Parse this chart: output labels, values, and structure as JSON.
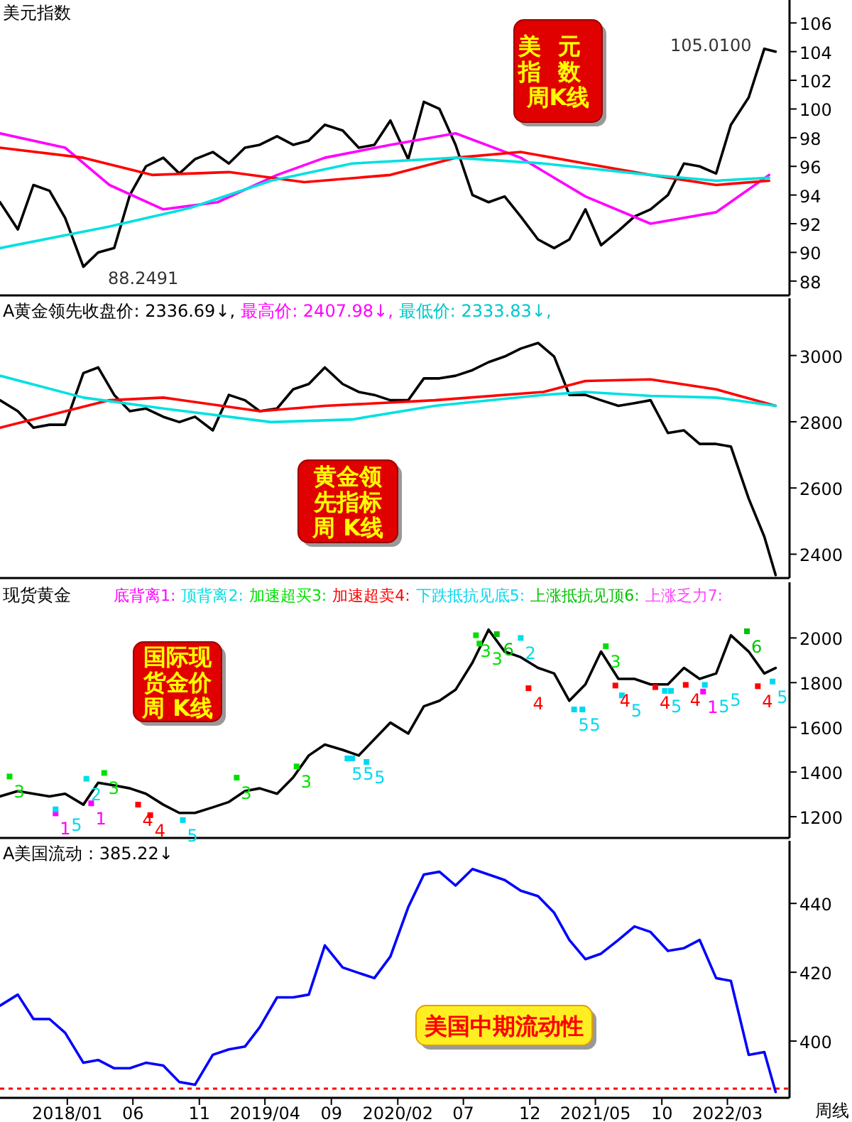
{
  "chart_data": [
    {
      "type": "line",
      "title": "美元指数",
      "xlim": [
        "2017-07-30",
        "2022-07-22"
      ],
      "ylim": [
        87.0,
        107.6
      ],
      "yticks": [
        88,
        90,
        92,
        94,
        96,
        98,
        100,
        102,
        104,
        106
      ],
      "tick_labels": "y",
      "x": [
        "2017-07-30",
        "2017-09-09",
        "2017-10-15",
        "2017-11-21",
        "2017-12-27",
        "2018-02-07",
        "2018-03-13",
        "2018-04-19",
        "2018-05-25",
        "2018-07-01",
        "2018-08-10",
        "2018-09-16",
        "2018-10-22",
        "2018-12-02",
        "2019-01-08",
        "2019-02-14",
        "2019-03-20",
        "2019-04-29",
        "2019-06-05",
        "2019-07-11",
        "2019-08-17",
        "2019-09-27",
        "2019-11-03",
        "2019-12-09",
        "2020-01-15",
        "2020-02-25",
        "2020-04-01",
        "2020-05-07",
        "2020-06-13",
        "2020-07-22",
        "2020-08-28",
        "2020-10-04",
        "2020-11-10",
        "2020-12-20",
        "2021-01-26",
        "2021-03-02",
        "2021-04-08",
        "2021-05-14",
        "2021-06-23",
        "2021-07-30",
        "2021-09-05",
        "2021-10-15",
        "2021-11-21",
        "2021-12-27",
        "2022-02-03",
        "2022-03-09",
        "2022-04-19",
        "2022-05-25",
        "2022-06-20"
      ],
      "series": [
        {
          "color": "#000000",
          "values": [
            93.5,
            91.6,
            94.7,
            94.3,
            92.4,
            89.0,
            90.0,
            90.3,
            94.0,
            96.0,
            96.6,
            95.5,
            96.5,
            97.0,
            96.2,
            97.3,
            97.5,
            98.1,
            97.5,
            97.8,
            98.9,
            98.5,
            97.3,
            97.5,
            99.2,
            96.5,
            100.5,
            100.0,
            97.5,
            94.0,
            93.5,
            93.9,
            92.5,
            90.9,
            90.3,
            90.9,
            93.0,
            90.5,
            91.5,
            92.5,
            93.0,
            94.0,
            96.2,
            96.0,
            95.5,
            98.9,
            100.8,
            104.2,
            104.0
          ]
        },
        {
          "color": "#ff00ff",
          "x": [
            "2017-07-30",
            "2017-12-27",
            "2018-04-08",
            "2018-08-10",
            "2018-12-13",
            "2019-04-29",
            "2019-08-17",
            "2020-01-15",
            "2020-06-13",
            "2020-11-10",
            "2021-04-08",
            "2021-09-05",
            "2022-02-03",
            "2022-06-05"
          ],
          "values": [
            98.3,
            97.3,
            94.7,
            93.0,
            93.5,
            95.4,
            96.6,
            97.5,
            98.3,
            96.6,
            93.9,
            92.0,
            92.8,
            95.4
          ]
        },
        {
          "color": "#ff0000",
          "x": [
            "2017-07-30",
            "2018-02-07",
            "2018-07-15",
            "2019-01-08",
            "2019-07-01",
            "2020-01-15",
            "2020-06-13",
            "2020-11-10",
            "2021-04-08",
            "2021-09-05",
            "2022-02-03",
            "2022-06-05"
          ],
          "values": [
            97.3,
            96.6,
            95.4,
            95.6,
            94.9,
            95.4,
            96.6,
            97.0,
            96.2,
            95.4,
            94.7,
            95.0
          ]
        },
        {
          "color": "#00e0e0",
          "x": [
            "2017-07-30",
            "2018-04-08",
            "2018-10-11",
            "2019-04-15",
            "2019-10-19",
            "2020-06-13",
            "2021-01-01",
            "2021-09-05",
            "2022-02-03",
            "2022-06-05"
          ],
          "values": [
            90.3,
            91.8,
            93.1,
            95.0,
            96.2,
            96.6,
            96.2,
            95.4,
            95.0,
            95.2
          ]
        }
      ],
      "annotations": [
        "美元指数周K线",
        "105.0100",
        "88.2491"
      ]
    },
    {
      "type": "line",
      "xlim": [
        "2017-07-30",
        "2022-07-22"
      ],
      "ylim": [
        2328,
        3173
      ],
      "yticks": [
        2400,
        2600,
        2800,
        3000
      ],
      "tick_labels": "y",
      "x": [
        "2017-07-30",
        "2017-09-09",
        "2017-10-15",
        "2017-11-21",
        "2017-12-27",
        "2018-02-07",
        "2018-03-13",
        "2018-04-19",
        "2018-05-25",
        "2018-07-01",
        "2018-08-10",
        "2018-09-16",
        "2018-10-22",
        "2018-12-02",
        "2019-01-08",
        "2019-02-14",
        "2019-03-20",
        "2019-04-29",
        "2019-06-05",
        "2019-07-11",
        "2019-08-17",
        "2019-09-27",
        "2019-11-03",
        "2019-12-09",
        "2020-01-15",
        "2020-02-25",
        "2020-04-01",
        "2020-05-07",
        "2020-06-13",
        "2020-07-22",
        "2020-08-28",
        "2020-10-04",
        "2020-11-10",
        "2020-12-20",
        "2021-01-26",
        "2021-03-02",
        "2021-04-08",
        "2021-05-14",
        "2021-06-23",
        "2021-07-30",
        "2021-09-05",
        "2021-10-15",
        "2021-11-21",
        "2021-12-27",
        "2022-02-03",
        "2022-03-09",
        "2022-04-19",
        "2022-05-25",
        "2022-06-20"
      ],
      "series": [
        {
          "color": "#000000",
          "values": [
            2865,
            2832,
            2782,
            2791,
            2791,
            2947,
            2964,
            2881,
            2832,
            2840,
            2815,
            2799,
            2815,
            2774,
            2881,
            2865,
            2832,
            2840,
            2898,
            2914,
            2964,
            2914,
            2890,
            2881,
            2865,
            2865,
            2931,
            2931,
            2939,
            2956,
            2980,
            2997,
            3021,
            3038,
            2997,
            2881,
            2881,
            2865,
            2848,
            2856,
            2865,
            2766,
            2774,
            2733,
            2733,
            2725,
            2568,
            2453,
            2337
          ]
        },
        {
          "color": "#ff0000",
          "x": [
            "2017-07-30",
            "2018-04-08",
            "2018-08-10",
            "2019-03-20",
            "2019-08-17",
            "2020-04-26",
            "2021-01-01",
            "2021-04-08",
            "2021-09-05",
            "2022-02-03",
            "2022-06-20"
          ],
          "values": [
            2782,
            2865,
            2873,
            2832,
            2848,
            2865,
            2890,
            2923,
            2928,
            2898,
            2848
          ]
        },
        {
          "color": "#00e0e0",
          "x": [
            "2017-07-30",
            "2018-02-07",
            "2018-08-10",
            "2019-04-15",
            "2019-10-19",
            "2020-04-26",
            "2021-01-01",
            "2021-04-08",
            "2021-09-05",
            "2022-02-03",
            "2022-06-20"
          ],
          "values": [
            2939,
            2873,
            2840,
            2799,
            2807,
            2848,
            2881,
            2890,
            2878,
            2873,
            2848
          ]
        }
      ],
      "annotations": [
        "A黄金领先收盘价: 2336.69↓,",
        "最高价: 2407.98↓,",
        "最低价: 2333.83↓,",
        "黄金领先指标周 K线"
      ]
    },
    {
      "type": "line",
      "title": "现货黄金",
      "legend": "top left",
      "xlim": [
        "2017-07-30",
        "2022-07-22"
      ],
      "ylim": [
        1105,
        2249
      ],
      "yticks": [
        1200,
        1400,
        1600,
        1800,
        2000
      ],
      "tick_labels": "y",
      "x": [
        "2017-07-30",
        "2017-09-09",
        "2017-10-15",
        "2017-11-21",
        "2017-12-27",
        "2018-02-07",
        "2018-03-13",
        "2018-04-19",
        "2018-05-25",
        "2018-07-01",
        "2018-08-10",
        "2018-09-16",
        "2018-10-22",
        "2018-12-02",
        "2019-01-08",
        "2019-02-14",
        "2019-03-20",
        "2019-04-29",
        "2019-06-05",
        "2019-07-11",
        "2019-08-17",
        "2019-09-27",
        "2019-11-03",
        "2019-12-09",
        "2020-01-15",
        "2020-02-25",
        "2020-04-01",
        "2020-05-07",
        "2020-06-13",
        "2020-07-22",
        "2020-08-28",
        "2020-10-04",
        "2020-11-10",
        "2020-12-20",
        "2021-01-26",
        "2021-03-02",
        "2021-04-08",
        "2021-05-14",
        "2021-06-23",
        "2021-07-30",
        "2021-09-05",
        "2021-10-15",
        "2021-11-21",
        "2021-12-27",
        "2022-02-03",
        "2022-03-09",
        "2022-04-19",
        "2022-05-25",
        "2022-06-20"
      ],
      "series": [
        {
          "color": "#000000",
          "values": [
            1291,
            1315,
            1303,
            1291,
            1303,
            1254,
            1352,
            1340,
            1327,
            1303,
            1254,
            1217,
            1217,
            1242,
            1266,
            1315,
            1327,
            1303,
            1376,
            1474,
            1523,
            1499,
            1474,
            1547,
            1621,
            1572,
            1694,
            1719,
            1768,
            1890,
            2037,
            1939,
            1914,
            1866,
            1841,
            1719,
            1792,
            1939,
            1817,
            1817,
            1792,
            1792,
            1866,
            1817,
            1841,
            2012,
            1939,
            1841,
            1866
          ]
        },
        {
          "type": "scatter",
          "name": "底背离1:",
          "color": "#ff00ff",
          "x": [
            "2017-12-05",
            "2018-02-25",
            "2022-01-04"
          ],
          "values": [
            1215,
            1260,
            1760
          ]
        },
        {
          "type": "scatter",
          "name": "顶背离2:",
          "color": "#00e0e0",
          "x": [
            "2018-02-14",
            "2020-11-10"
          ],
          "values": [
            1370,
            2000
          ]
        },
        {
          "type": "scatter",
          "name": "加速超买3:",
          "color": "#00e000",
          "x": [
            "2017-08-21",
            "2018-03-27",
            "2019-01-26",
            "2019-06-13",
            "2020-07-30",
            "2020-08-07",
            "2021-05-25"
          ],
          "values": [
            1380,
            1396,
            1375,
            1425,
            2012,
            1975,
            1963
          ]
        },
        {
          "type": "scatter",
          "name": "加速超卖4:",
          "color": "#ff0000",
          "x": [
            "2018-06-13",
            "2018-07-11",
            "2020-11-28",
            "2021-06-16",
            "2021-09-16",
            "2021-11-25",
            "2022-05-10"
          ],
          "values": [
            1254,
            1207,
            1775,
            1787,
            1780,
            1790,
            1784
          ]
        },
        {
          "type": "scatter",
          "name": "下跌抵抗见底5:",
          "color": "#00d8f0",
          "x": [
            "2017-12-05",
            "2018-09-24",
            "2019-10-08",
            "2019-10-19",
            "2019-11-21",
            "2021-03-13",
            "2021-04-01",
            "2021-07-01",
            "2021-10-08",
            "2021-10-22",
            "2022-01-08",
            "2022-06-13"
          ],
          "values": [
            1233,
            1185,
            1461,
            1461,
            1445,
            1680,
            1680,
            1743,
            1763,
            1763,
            1790,
            1805
          ]
        },
        {
          "type": "scatter",
          "name": "上涨抵抗见顶6:",
          "color": "#00c000",
          "x": [
            "2020-09-16",
            "2022-04-15"
          ],
          "values": [
            2017,
            2030
          ]
        },
        {
          "type": "scatter",
          "name": "上涨乏力7:",
          "color": "#ff40ff",
          "values": [
            null,
            null,
            null,
            null,
            null,
            null,
            null,
            null,
            null,
            null,
            null,
            null,
            null,
            null,
            null,
            null,
            null,
            null,
            null,
            null,
            null,
            null,
            null,
            null,
            null,
            null,
            null,
            null,
            null,
            null,
            null,
            null,
            null,
            null,
            null,
            null,
            null,
            null,
            null,
            null,
            null,
            null,
            null,
            null,
            null,
            null,
            null,
            null,
            null
          ]
        }
      ],
      "annotations": [
        "国际现货金价周 K线",
        {
          "text": "1",
          "x": "2017-12-05",
          "y": 1215
        },
        {
          "text": "1",
          "x": "2018-02-25",
          "y": 1260
        },
        {
          "text": "1",
          "x": "2022-01-04",
          "y": 1760
        },
        {
          "text": "2",
          "x": "2018-02-14",
          "y": 1370
        },
        {
          "text": "2",
          "x": "2020-11-10",
          "y": 2000
        },
        {
          "text": "3",
          "x": "2017-08-21",
          "y": 1380
        },
        {
          "text": "3",
          "x": "2018-03-27",
          "y": 1396
        },
        {
          "text": "3",
          "x": "2019-01-26",
          "y": 1375
        },
        {
          "text": "3",
          "x": "2019-06-13",
          "y": 1425
        },
        {
          "text": "3",
          "x": "2020-07-30",
          "y": 2012
        },
        {
          "text": "3",
          "x": "2020-08-07",
          "y": 1975
        },
        {
          "text": "3",
          "x": "2021-05-25",
          "y": 1963
        },
        {
          "text": "4",
          "x": "2018-06-13",
          "y": 1254
        },
        {
          "text": "4",
          "x": "2018-07-11",
          "y": 1207
        },
        {
          "text": "4",
          "x": "2020-11-28",
          "y": 1775
        },
        {
          "text": "4",
          "x": "2021-06-16",
          "y": 1787
        },
        {
          "text": "4",
          "x": "2021-09-16",
          "y": 1780
        },
        {
          "text": "4",
          "x": "2021-11-25",
          "y": 1790
        },
        {
          "text": "4",
          "x": "2022-05-10",
          "y": 1784
        },
        {
          "text": "5",
          "x": "2017-12-05",
          "y": 1233
        },
        {
          "text": "5",
          "x": "2018-09-24",
          "y": 1185
        },
        {
          "text": "5",
          "x": "2019-10-08",
          "y": 1461
        },
        {
          "text": "5",
          "x": "2019-10-19",
          "y": 1461
        },
        {
          "text": "5",
          "x": "2019-11-21",
          "y": 1445
        },
        {
          "text": "5",
          "x": "2021-03-13",
          "y": 1680
        },
        {
          "text": "5",
          "x": "2021-04-01",
          "y": 1680
        },
        {
          "text": "5",
          "x": "2021-07-01",
          "y": 1743
        },
        {
          "text": "5",
          "x": "2021-10-08",
          "y": 1763
        },
        {
          "text": "5",
          "x": "2021-10-22",
          "y": 1763
        },
        {
          "text": "5",
          "x": "2022-01-08",
          "y": 1790
        },
        {
          "text": "5",
          "x": "2022-06-13",
          "y": 1805
        },
        {
          "text": "6",
          "x": "2020-09-16",
          "y": 2017
        },
        {
          "text": "6",
          "x": "2022-04-15",
          "y": 2030
        }
      ]
    },
    {
      "type": "line",
      "title": "A美国流动 : 385.22↓",
      "xlim": [
        "2017-07-30",
        "2022-07-22"
      ],
      "ylim": [
        383.5,
        458.2
      ],
      "yticks": [
        400,
        420,
        440
      ],
      "xticks": [
        {
          "value": "2018-01-01",
          "label": "2018/01"
        },
        {
          "value": "2018-06-01",
          "label": "06"
        },
        {
          "value": "2018-11-01",
          "label": "11"
        },
        {
          "value": "2019-04-01",
          "label": "2019/04"
        },
        {
          "value": "2019-09-01",
          "label": "09"
        },
        {
          "value": "2020-02-01",
          "label": "2020/02"
        },
        {
          "value": "2020-07-01",
          "label": "07"
        },
        {
          "value": "2020-12-01",
          "label": "12"
        },
        {
          "value": "2021-05-01",
          "label": "2021/05"
        },
        {
          "value": "2021-10-01",
          "label": "10"
        },
        {
          "value": "2022-03-01",
          "label": "2022/03"
        }
      ],
      "x": [
        "2017-07-30",
        "2017-09-09",
        "2017-10-15",
        "2017-11-21",
        "2017-12-27",
        "2018-02-07",
        "2018-03-13",
        "2018-04-19",
        "2018-05-25",
        "2018-07-01",
        "2018-08-10",
        "2018-09-16",
        "2018-10-22",
        "2018-12-02",
        "2019-01-08",
        "2019-02-14",
        "2019-03-20",
        "2019-04-29",
        "2019-06-05",
        "2019-07-11",
        "2019-08-17",
        "2019-09-27",
        "2019-11-03",
        "2019-12-09",
        "2020-01-15",
        "2020-02-25",
        "2020-04-01",
        "2020-05-07",
        "2020-06-13",
        "2020-07-22",
        "2020-08-28",
        "2020-10-04",
        "2020-11-10",
        "2020-12-20",
        "2021-01-26",
        "2021-03-02",
        "2021-04-08",
        "2021-05-14",
        "2021-06-23",
        "2021-07-30",
        "2021-09-05",
        "2021-10-15",
        "2021-11-21",
        "2021-12-27",
        "2022-02-03",
        "2022-03-09",
        "2022-04-19",
        "2022-05-25",
        "2022-06-20"
      ],
      "series": [
        {
          "color": "#0000ff",
          "values": [
            410.3,
            413.5,
            406.4,
            406.4,
            402.4,
            393.7,
            394.5,
            392.1,
            392.1,
            393.7,
            392.9,
            388.1,
            387.3,
            396.0,
            397.6,
            398.4,
            404.0,
            412.7,
            412.7,
            413.5,
            427.8,
            421.4,
            419.8,
            418.3,
            424.6,
            438.9,
            448.4,
            449.2,
            445.2,
            450.0,
            448.4,
            446.8,
            443.7,
            442.1,
            437.3,
            429.4,
            423.8,
            425.4,
            429.4,
            433.3,
            431.7,
            426.2,
            427.0,
            429.4,
            418.3,
            417.5,
            396.0,
            396.8,
            385.2
          ]
        }
      ],
      "ref_lines": [
        {
          "axis": "y",
          "value": 386.2,
          "color": "#ff0000",
          "line_style": "dotted"
        }
      ],
      "annotations": [
        "美国中期流动性",
        "周线"
      ]
    }
  ]
}
